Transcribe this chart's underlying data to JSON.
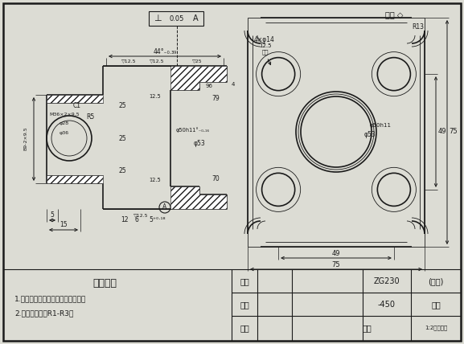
{
  "bg_color": "#dcdcd4",
  "line_color": "#1a1a1a",
  "notes_title": "技术要求",
  "note1": "1.铸件应经时效处理，消除内应力。",
  "note2": "2.未注铸造圆角R1-R3。",
  "tb_label1": "设计",
  "tb_label2": "校核",
  "tb_label3": "审核",
  "tb_val1": "ZG230",
  "tb_val2": "-450",
  "tb_val3": "比例",
  "tb_unit": "(单位)",
  "tb_name": "阀盖",
  "tb_logo": "1:2机械知识",
  "other_sym": "其余"
}
